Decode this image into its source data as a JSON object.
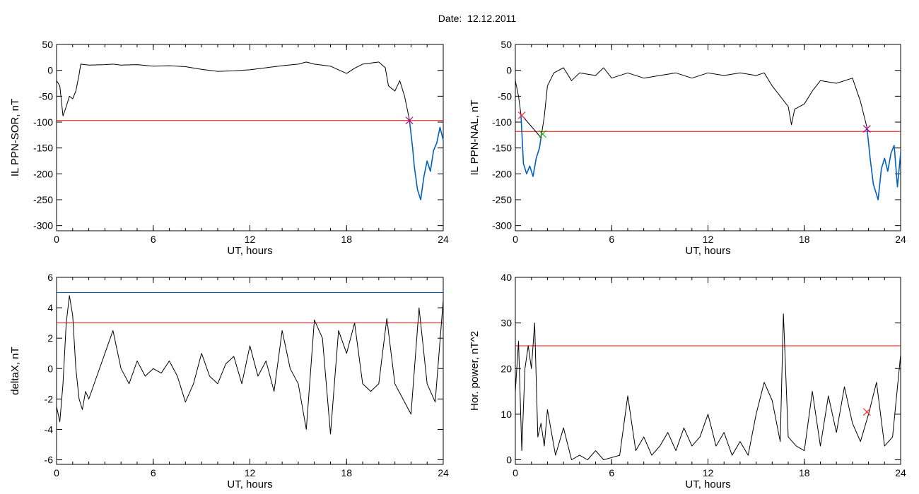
{
  "header": {
    "date_label": "Date:",
    "date_value": "12.12.2011"
  },
  "colors": {
    "threshold": "#ff0000",
    "highlight": "#0060c0",
    "trace": "#000000",
    "alt_marker": "#00c000"
  },
  "chart_data": [
    {
      "id": "sor",
      "type": "line",
      "ylabel": "IL PPN-SOR, nT",
      "xlabel": "UT, hours",
      "xlim": [
        0,
        24
      ],
      "ylim": [
        -310,
        50
      ],
      "xticks": [
        0,
        6,
        12,
        18,
        24
      ],
      "yticks": [
        50,
        0,
        -50,
        -100,
        -150,
        -200,
        -250,
        -300
      ],
      "threshold": -97,
      "series": [
        {
          "color": "#000000",
          "points": [
            [
              0,
              -20
            ],
            [
              0.2,
              -30
            ],
            [
              0.4,
              -88
            ],
            [
              0.6,
              -70
            ],
            [
              0.8,
              -50
            ],
            [
              1.0,
              -55
            ],
            [
              1.2,
              -40
            ],
            [
              1.4,
              -8
            ],
            [
              1.5,
              12
            ],
            [
              2,
              10
            ],
            [
              3,
              11
            ],
            [
              3.5,
              12
            ],
            [
              4,
              10
            ],
            [
              5,
              11
            ],
            [
              6,
              8
            ],
            [
              7,
              9
            ],
            [
              8,
              7
            ],
            [
              9,
              2
            ],
            [
              10,
              -2
            ],
            [
              11,
              -1
            ],
            [
              12,
              1
            ],
            [
              13,
              5
            ],
            [
              14,
              9
            ],
            [
              15,
              12
            ],
            [
              15.5,
              16
            ],
            [
              16,
              12
            ],
            [
              17,
              8
            ],
            [
              18,
              -6
            ],
            [
              18.5,
              4
            ],
            [
              19,
              12
            ],
            [
              20,
              16
            ],
            [
              20.4,
              5
            ],
            [
              20.6,
              -30
            ],
            [
              21,
              -40
            ],
            [
              21.3,
              -20
            ],
            [
              21.6,
              -50
            ],
            [
              21.9,
              -95
            ]
          ]
        },
        {
          "color": "#0060c0",
          "points": [
            [
              21.9,
              -95
            ],
            [
              22.1,
              -150
            ],
            [
              22.2,
              -185
            ],
            [
              22.4,
              -230
            ],
            [
              22.6,
              -250
            ],
            [
              22.8,
              -205
            ],
            [
              23,
              -175
            ],
            [
              23.2,
              -195
            ],
            [
              23.4,
              -155
            ],
            [
              23.6,
              -140
            ],
            [
              23.8,
              -110
            ],
            [
              24,
              -135
            ]
          ]
        }
      ],
      "markers": [
        {
          "x": 21.9,
          "y": -97,
          "color": "#c00080"
        }
      ]
    },
    {
      "id": "nal",
      "type": "line",
      "ylabel": "IL PPN-NAL, nT",
      "xlabel": "UT, hours",
      "xlim": [
        0,
        24
      ],
      "ylim": [
        -310,
        50
      ],
      "xticks": [
        0,
        6,
        12,
        18,
        24
      ],
      "yticks": [
        50,
        0,
        -50,
        -100,
        -150,
        -200,
        -250,
        -300
      ],
      "threshold": -118,
      "series": [
        {
          "color": "#000000",
          "points": [
            [
              0,
              -20
            ],
            [
              0.2,
              -50
            ],
            [
              0.35,
              -85
            ],
            [
              1.6,
              -130
            ],
            [
              1.8,
              -90
            ],
            [
              2,
              -30
            ],
            [
              2.4,
              -5
            ],
            [
              3,
              5
            ],
            [
              3.5,
              -20
            ],
            [
              4,
              -5
            ],
            [
              5,
              -10
            ],
            [
              5.5,
              5
            ],
            [
              6,
              -15
            ],
            [
              7,
              -5
            ],
            [
              8,
              -15
            ],
            [
              9,
              -10
            ],
            [
              10,
              -5
            ],
            [
              11,
              -15
            ],
            [
              12,
              -5
            ],
            [
              13,
              -10
            ],
            [
              14,
              -5
            ],
            [
              15,
              -10
            ],
            [
              15.5,
              -5
            ],
            [
              16,
              -30
            ],
            [
              16.5,
              -50
            ],
            [
              17,
              -70
            ],
            [
              17.2,
              -105
            ],
            [
              17.4,
              -75
            ],
            [
              18,
              -65
            ],
            [
              18.5,
              -40
            ],
            [
              19,
              -20
            ],
            [
              20,
              -25
            ],
            [
              21,
              -15
            ],
            [
              21.5,
              -60
            ],
            [
              21.9,
              -110
            ]
          ]
        },
        {
          "color": "#0060c0",
          "points": [
            [
              0.35,
              -85
            ],
            [
              0.5,
              -180
            ],
            [
              0.7,
              -200
            ],
            [
              0.9,
              -185
            ],
            [
              1.1,
              -205
            ],
            [
              1.3,
              -170
            ],
            [
              1.5,
              -150
            ],
            [
              1.6,
              -130
            ]
          ]
        },
        {
          "color": "#0060c0",
          "points": [
            [
              21.9,
              -110
            ],
            [
              22.1,
              -170
            ],
            [
              22.3,
              -220
            ],
            [
              22.6,
              -250
            ],
            [
              22.8,
              -190
            ],
            [
              23,
              -170
            ],
            [
              23.2,
              -195
            ],
            [
              23.4,
              -160
            ],
            [
              23.6,
              -145
            ],
            [
              23.8,
              -225
            ],
            [
              24,
              -160
            ]
          ]
        }
      ],
      "markers": [
        {
          "x": 0.4,
          "y": -87,
          "color": "#ff3030"
        },
        {
          "x": 1.7,
          "y": -123,
          "color": "#00c000"
        },
        {
          "x": 21.9,
          "y": -113,
          "color": "#c00080"
        }
      ]
    },
    {
      "id": "deltax",
      "type": "line",
      "ylabel": "deltaX, nT",
      "xlabel": "UT, hours",
      "xlim": [
        0,
        24
      ],
      "ylim": [
        -6.3,
        6
      ],
      "xticks": [
        0,
        6,
        12,
        18,
        24
      ],
      "yticks": [
        6,
        4,
        2,
        0,
        -2,
        -4,
        -6
      ],
      "threshold": 3,
      "threshold2": 5,
      "series": [
        {
          "color": "#000000",
          "points": [
            [
              0,
              -2.5
            ],
            [
              0.2,
              -3.5
            ],
            [
              0.4,
              -1
            ],
            [
              0.6,
              3
            ],
            [
              0.8,
              4.8
            ],
            [
              1,
              3.5
            ],
            [
              1.2,
              0
            ],
            [
              1.4,
              -2
            ],
            [
              1.6,
              -2.7
            ],
            [
              1.8,
              -1.5
            ],
            [
              2,
              -2
            ],
            [
              2.5,
              -0.5
            ],
            [
              3,
              1
            ],
            [
              3.5,
              2.5
            ],
            [
              4,
              0
            ],
            [
              4.5,
              -1
            ],
            [
              5,
              0.5
            ],
            [
              5.5,
              -0.5
            ],
            [
              6,
              0
            ],
            [
              6.5,
              -0.3
            ],
            [
              7,
              0.5
            ],
            [
              7.5,
              -0.5
            ],
            [
              8,
              -2.2
            ],
            [
              8.5,
              -1
            ],
            [
              9,
              1
            ],
            [
              9.5,
              -0.5
            ],
            [
              10,
              -1
            ],
            [
              10.5,
              0.3
            ],
            [
              11,
              0.8
            ],
            [
              11.5,
              -1
            ],
            [
              12,
              1.5
            ],
            [
              12.5,
              -0.5
            ],
            [
              13,
              0.5
            ],
            [
              13.5,
              -1.5
            ],
            [
              14,
              2.5
            ],
            [
              14.5,
              0
            ],
            [
              15,
              -1
            ],
            [
              15.5,
              -4
            ],
            [
              16,
              3.2
            ],
            [
              16.5,
              2
            ],
            [
              17,
              -4.3
            ],
            [
              17.5,
              2.5
            ],
            [
              18,
              1
            ],
            [
              18.5,
              3
            ],
            [
              19,
              -1
            ],
            [
              19.5,
              -1.5
            ],
            [
              20,
              -1
            ],
            [
              20.5,
              3.3
            ],
            [
              21,
              -1
            ],
            [
              21.5,
              -2
            ],
            [
              22,
              -3
            ],
            [
              22.5,
              4
            ],
            [
              23,
              -1
            ],
            [
              23.5,
              -2.2
            ],
            [
              24,
              4.5
            ]
          ]
        }
      ],
      "markers": []
    },
    {
      "id": "power",
      "type": "line",
      "ylabel": "Hor. power, nT^2",
      "xlabel": "UT, hours",
      "xlim": [
        0,
        24
      ],
      "ylim": [
        -1,
        40
      ],
      "xticks": [
        0,
        6,
        12,
        18,
        24
      ],
      "yticks": [
        40,
        30,
        20,
        10,
        0
      ],
      "threshold": 25,
      "series": [
        {
          "color": "#000000",
          "points": [
            [
              0,
              15
            ],
            [
              0.2,
              26
            ],
            [
              0.4,
              2
            ],
            [
              0.6,
              20
            ],
            [
              0.8,
              25
            ],
            [
              1,
              20
            ],
            [
              1.2,
              30
            ],
            [
              1.4,
              5
            ],
            [
              1.6,
              8
            ],
            [
              1.8,
              3
            ],
            [
              2,
              11
            ],
            [
              2.5,
              1
            ],
            [
              3,
              7
            ],
            [
              3.5,
              0
            ],
            [
              4,
              1
            ],
            [
              4.5,
              0
            ],
            [
              5,
              2
            ],
            [
              5.5,
              0
            ],
            [
              6,
              0.5
            ],
            [
              6.5,
              1
            ],
            [
              7,
              14
            ],
            [
              7.5,
              2
            ],
            [
              8,
              5
            ],
            [
              8.5,
              1
            ],
            [
              9,
              3
            ],
            [
              9.5,
              6
            ],
            [
              10,
              2
            ],
            [
              10.5,
              7
            ],
            [
              11,
              3
            ],
            [
              11.5,
              5
            ],
            [
              12,
              10
            ],
            [
              12.5,
              3
            ],
            [
              13,
              6
            ],
            [
              13.5,
              1
            ],
            [
              14,
              4
            ],
            [
              14.5,
              1
            ],
            [
              15,
              10
            ],
            [
              15.5,
              17
            ],
            [
              16,
              13
            ],
            [
              16.5,
              4
            ],
            [
              16.7,
              32
            ],
            [
              17,
              5
            ],
            [
              17.5,
              3
            ],
            [
              18,
              2
            ],
            [
              18.5,
              15
            ],
            [
              19,
              3
            ],
            [
              19.5,
              14
            ],
            [
              20,
              6
            ],
            [
              20.5,
              16
            ],
            [
              21,
              8
            ],
            [
              21.5,
              4
            ],
            [
              22,
              10
            ],
            [
              22.5,
              17
            ],
            [
              23,
              3
            ],
            [
              23.5,
              5
            ],
            [
              24,
              23
            ]
          ]
        }
      ],
      "markers": [
        {
          "x": 21.9,
          "y": 10.5,
          "color": "#ff3030"
        }
      ]
    }
  ]
}
